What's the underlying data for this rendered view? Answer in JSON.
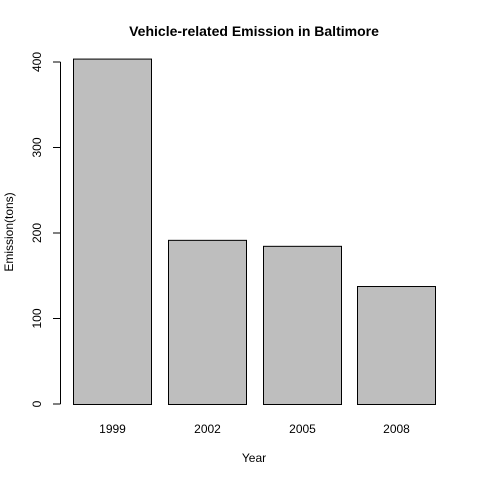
{
  "chart_data": {
    "type": "bar",
    "title": "Vehicle-related Emission in Baltimore",
    "xlabel": "Year",
    "ylabel": "Emission(tons)",
    "categories": [
      "1999",
      "2002",
      "2005",
      "2008"
    ],
    "values": [
      404,
      192,
      185,
      138
    ],
    "ylim": [
      0,
      400
    ],
    "yticks": [
      0,
      100,
      200,
      300,
      400
    ],
    "grid": false,
    "legend": "none",
    "bar_color": "#bebebe",
    "bar_border_color": "#000000"
  }
}
